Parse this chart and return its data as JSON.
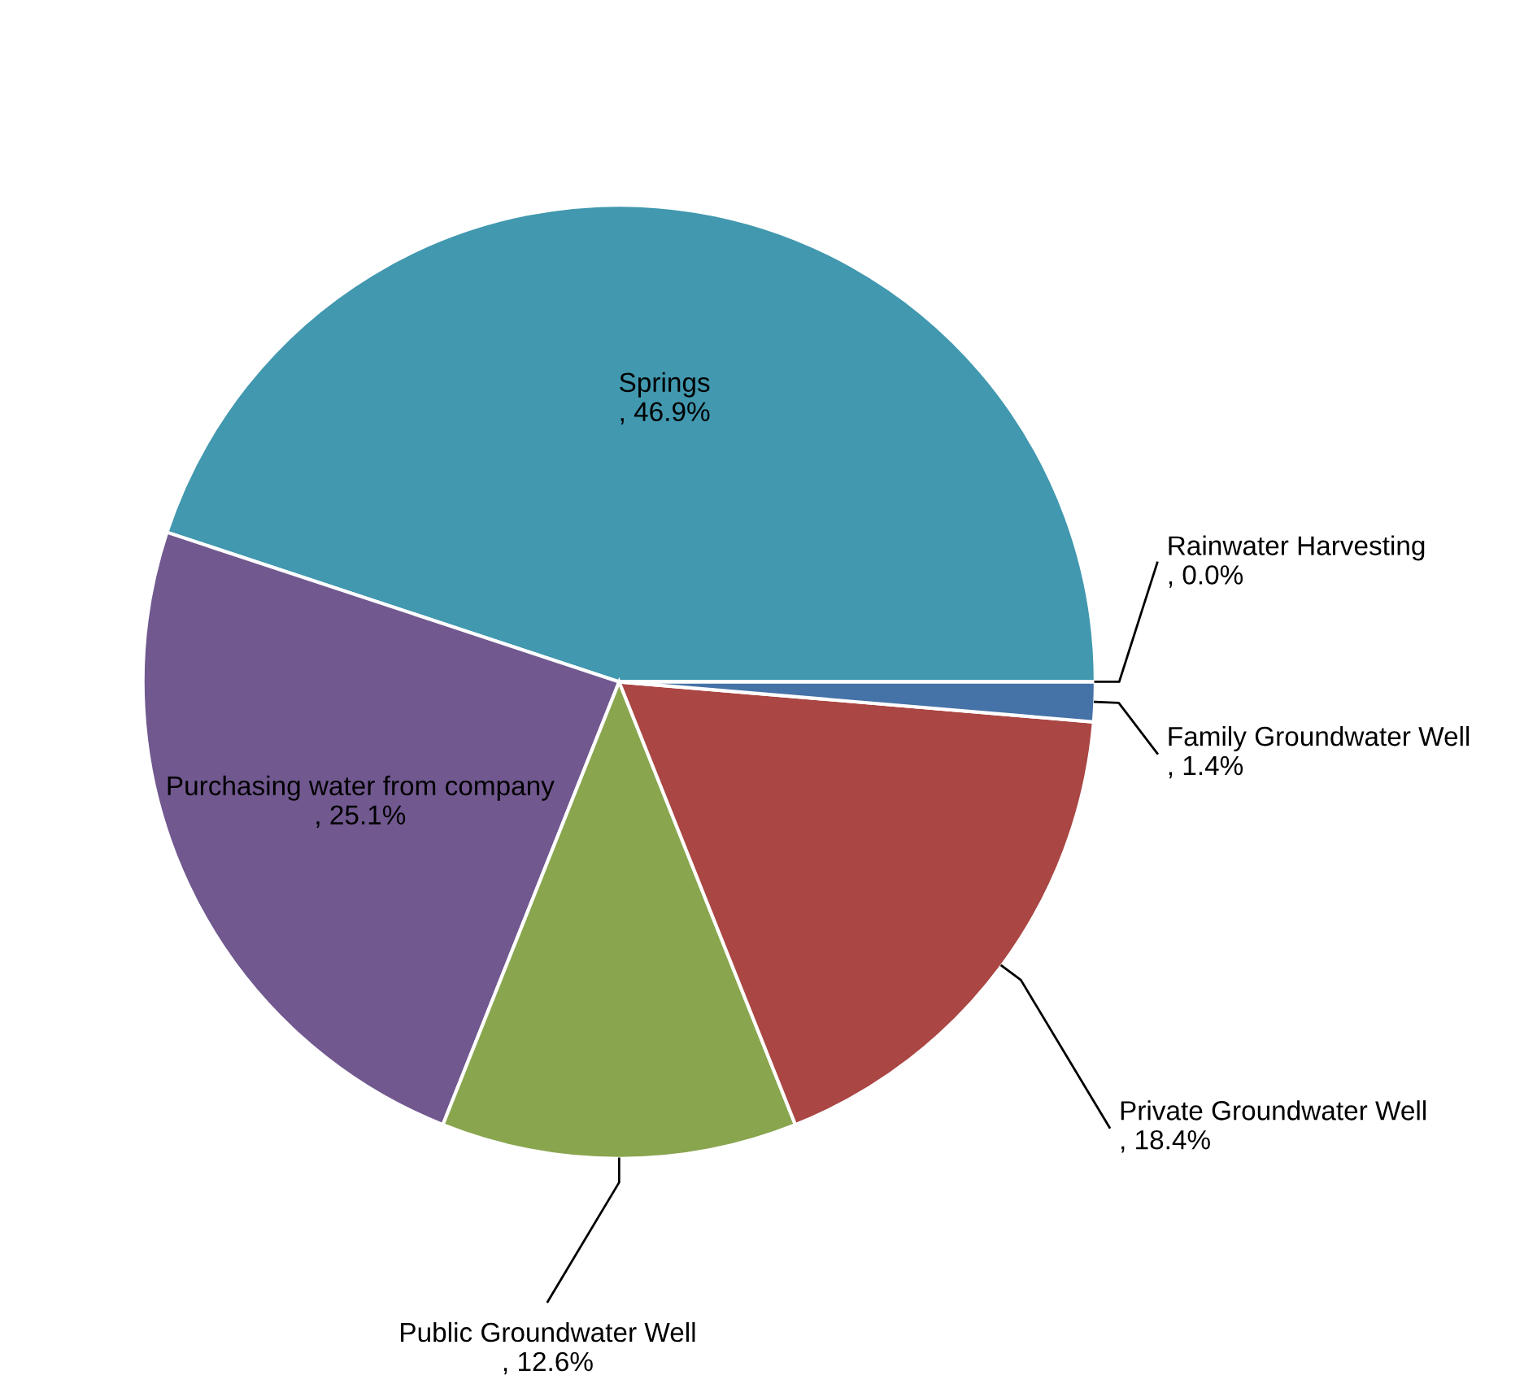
{
  "chart_data": {
    "type": "pie",
    "categories": [
      "Springs",
      "Purchasing water from company",
      "Public Groundwater Well",
      "Private Groundwater Well",
      "Family Groundwater Well",
      "Rainwater Harvesting"
    ],
    "values": [
      46.9,
      25.1,
      12.6,
      18.4,
      1.4,
      0.0
    ],
    "value_labels": [
      ", 46.9%",
      ", 25.1%",
      ", 12.6%",
      ", 18.4%",
      ", 1.4%",
      ", 0.0%"
    ],
    "colors": [
      "#4198af",
      "#71588f",
      "#89a54e",
      "#aa4643",
      "#4572a7",
      "#db843d"
    ],
    "legend": false
  }
}
